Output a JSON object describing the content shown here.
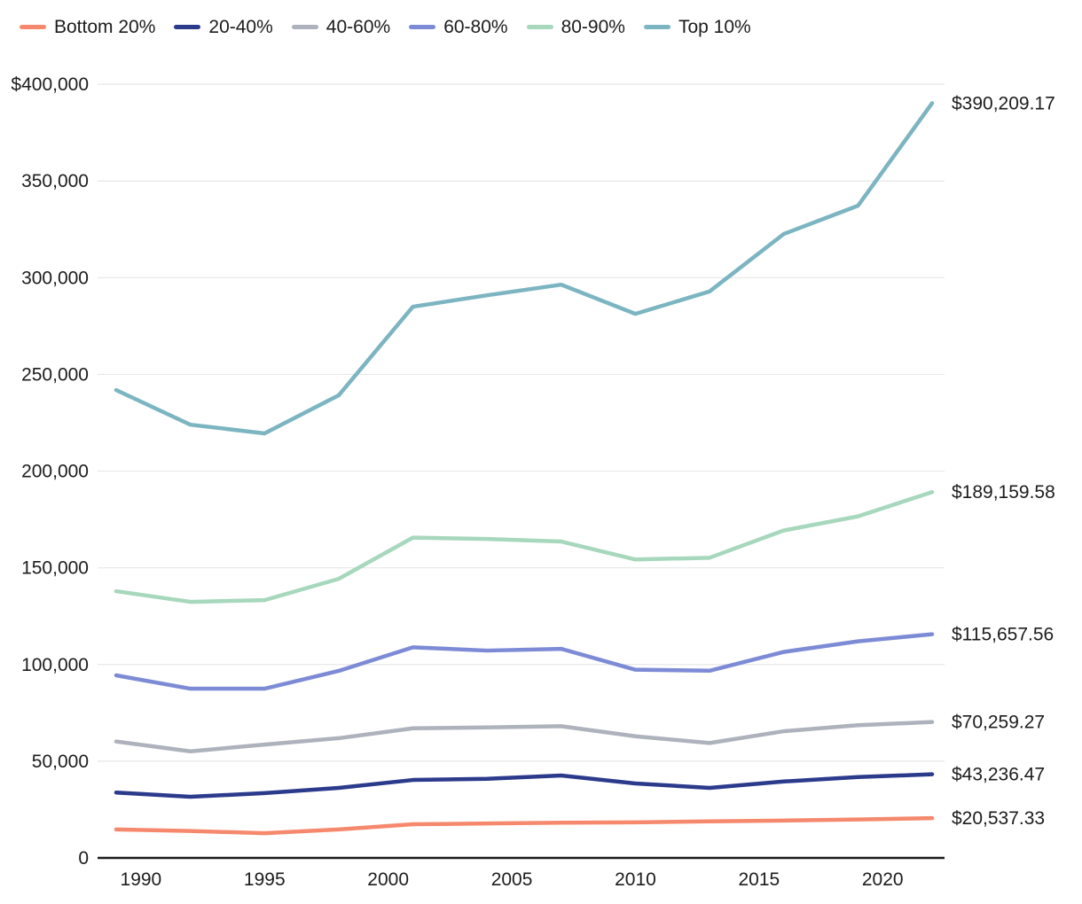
{
  "chart": {
    "background": "#ffffff",
    "axis_color": "#1a1a1a",
    "gridline_color": "#e7e7e7",
    "text_color": "#1c1c1c",
    "legend_position": "top-left"
  },
  "chart_data": {
    "type": "line",
    "title": "",
    "xlabel": "",
    "ylabel": "",
    "x": [
      1989,
      1992,
      1995,
      1998,
      2001,
      2004,
      2007,
      2010,
      2013,
      2016,
      2019,
      2022
    ],
    "xlim": [
      1989,
      2022
    ],
    "ylim": [
      0,
      400000
    ],
    "grid": "horizontal",
    "legend_position": "top-left",
    "x_ticks": [
      1990,
      1995,
      2000,
      2005,
      2010,
      2015,
      2020
    ],
    "x_tick_labels": [
      "1990",
      "1995",
      "2000",
      "2005",
      "2010",
      "2015",
      "2020"
    ],
    "y_ticks": [
      0,
      50000,
      100000,
      150000,
      200000,
      250000,
      300000,
      350000,
      400000
    ],
    "y_tick_labels": [
      "0",
      "50,000",
      "100,000",
      "150,000",
      "200,000",
      "250,000",
      "300,000",
      "350,000",
      "$400,000"
    ],
    "series": [
      {
        "name": "Bottom 20%",
        "color": "#F6896D",
        "values": [
          14700,
          13900,
          12800,
          14700,
          17400,
          17800,
          18200,
          18400,
          18900,
          19300,
          19900,
          20537.33
        ],
        "end_label": "$20,537.33"
      },
      {
        "name": "20-40%",
        "color": "#2C3A8C",
        "values": [
          33800,
          31600,
          33500,
          36200,
          40300,
          40900,
          42600,
          38500,
          36200,
          39500,
          41800,
          43236.47
        ],
        "end_label": "$43,236.47"
      },
      {
        "name": "40-60%",
        "color": "#AEB2BC",
        "values": [
          60200,
          55100,
          58600,
          61900,
          67000,
          67500,
          68100,
          62900,
          59400,
          65500,
          68600,
          70259.27
        ],
        "end_label": "$70,259.27"
      },
      {
        "name": "60-80%",
        "color": "#7D8BD6",
        "values": [
          94400,
          87500,
          87500,
          96700,
          108900,
          107200,
          108100,
          97300,
          96800,
          106500,
          112000,
          115657.56
        ],
        "end_label": "$115,657.56"
      },
      {
        "name": "80-90%",
        "color": "#A7D7BC",
        "values": [
          137900,
          132400,
          133300,
          144300,
          165600,
          164900,
          163600,
          154300,
          155200,
          169300,
          176600,
          189159.58
        ],
        "end_label": "$189,159.58"
      },
      {
        "name": "Top 10%",
        "color": "#7CB5C1",
        "values": [
          241900,
          224000,
          219500,
          239200,
          285000,
          290900,
          296400,
          281300,
          292900,
          322600,
          337200,
          390209.17
        ],
        "end_label": "$390,209.17"
      }
    ]
  }
}
